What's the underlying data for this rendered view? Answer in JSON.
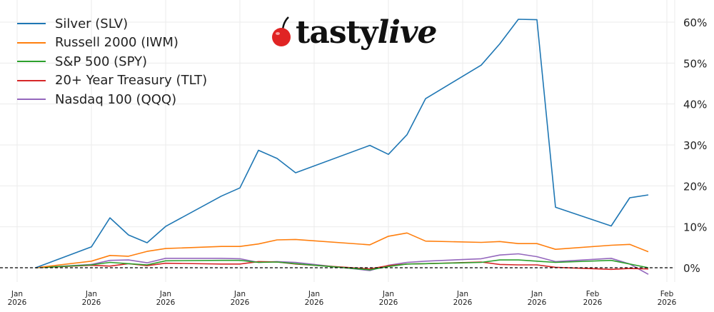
{
  "brand": {
    "logo_text_main": "tasty",
    "logo_text_italic": "live"
  },
  "chart_data": {
    "type": "line",
    "title": "",
    "xlabel": "",
    "ylabel": "",
    "y_axis_side": "right",
    "y_unit": "%",
    "ylim": [
      -4,
      63
    ],
    "yticks": [
      0,
      10,
      20,
      30,
      40,
      50,
      60
    ],
    "ytick_labels": [
      "0%",
      "10%",
      "20%",
      "30%",
      "40%",
      "50%",
      "60%"
    ],
    "xticks": [
      {
        "date": "2026-01-01",
        "label": [
          "Jan",
          "2026"
        ]
      },
      {
        "date": "2026-01-05",
        "label": [
          "Jan",
          "2026"
        ]
      },
      {
        "date": "2026-01-09",
        "label": [
          "Jan",
          "2026"
        ]
      },
      {
        "date": "2026-01-13",
        "label": [
          "Jan",
          "2026"
        ]
      },
      {
        "date": "2026-01-17",
        "label": [
          "Jan",
          "2026"
        ]
      },
      {
        "date": "2026-01-21",
        "label": [
          "Jan",
          "2026"
        ]
      },
      {
        "date": "2026-01-25",
        "label": [
          "Jan",
          "2026"
        ]
      },
      {
        "date": "2026-01-29",
        "label": [
          "Jan",
          "2026"
        ]
      },
      {
        "date": "2026-02-01",
        "label": [
          "Feb",
          "2026"
        ]
      },
      {
        "date": "2026-02-05",
        "label": [
          "Feb",
          "2026"
        ]
      }
    ],
    "grid": true,
    "baseline": {
      "value": 0,
      "style": "dashed",
      "color": "#000000"
    },
    "legend_position": "top-left",
    "x": [
      "2026-01-02",
      "2026-01-05",
      "2026-01-06",
      "2026-01-07",
      "2026-01-08",
      "2026-01-09",
      "2026-01-12",
      "2026-01-13",
      "2026-01-14",
      "2026-01-15",
      "2026-01-16",
      "2026-01-20",
      "2026-01-21",
      "2026-01-22",
      "2026-01-23",
      "2026-01-26",
      "2026-01-27",
      "2026-01-28",
      "2026-01-29",
      "2026-01-30",
      "2026-02-02",
      "2026-02-03",
      "2026-02-04"
    ],
    "series": [
      {
        "name": "Silver (SLV)",
        "color": "#1f77b4",
        "values": [
          0,
          5.1,
          12.2,
          8.0,
          6.1,
          10.1,
          17.5,
          19.5,
          28.7,
          26.7,
          23.2,
          29.9,
          27.7,
          32.5,
          41.3,
          49.5,
          54.7,
          60.7,
          60.6,
          14.8,
          10.2,
          17.1,
          17.8
        ]
      },
      {
        "name": "Russell 2000 (IWM)",
        "color": "#ff7f0e",
        "values": [
          0,
          1.6,
          3.0,
          2.8,
          4.0,
          4.7,
          5.2,
          5.2,
          5.8,
          6.8,
          6.9,
          5.6,
          7.7,
          8.5,
          6.5,
          6.2,
          6.4,
          5.9,
          5.9,
          4.5,
          5.5,
          5.7,
          3.9
        ]
      },
      {
        "name": "S&P 500 (SPY)",
        "color": "#2ca02c",
        "values": [
          0,
          0.7,
          1.3,
          1.0,
          0.7,
          1.7,
          1.8,
          1.8,
          1.3,
          1.4,
          1.0,
          -0.5,
          0.3,
          0.9,
          1.0,
          1.3,
          1.9,
          1.9,
          1.6,
          1.3,
          1.8,
          0.9,
          0.0
        ]
      },
      {
        "name": "20+ Year Treasury (TLT)",
        "color": "#d62728",
        "values": [
          0,
          0.6,
          0.4,
          1.0,
          0.5,
          1.1,
          0.9,
          0.9,
          1.5,
          1.4,
          0.9,
          -0.3,
          0.5,
          0.9,
          1.0,
          1.4,
          0.8,
          0.7,
          0.7,
          0.1,
          -0.4,
          -0.2,
          -0.3
        ]
      },
      {
        "name": "Nasdaq 100 (QQQ)",
        "color": "#9467bd",
        "values": [
          0,
          0.8,
          1.8,
          1.9,
          1.2,
          2.3,
          2.3,
          2.2,
          1.3,
          1.5,
          1.3,
          -0.7,
          0.6,
          1.3,
          1.6,
          2.2,
          3.1,
          3.4,
          2.7,
          1.5,
          2.3,
          0.9,
          -1.6
        ]
      }
    ]
  }
}
